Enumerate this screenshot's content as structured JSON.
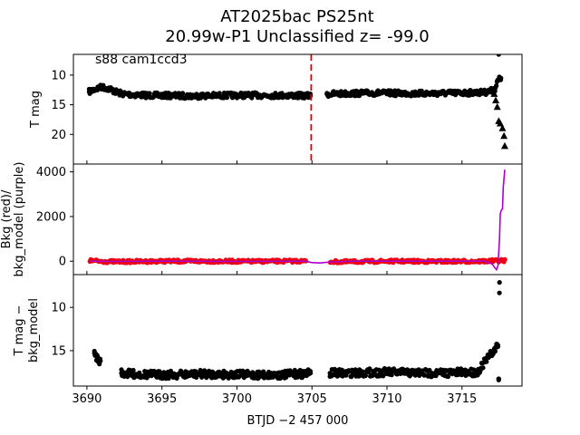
{
  "title_line1": "AT2025bac  PS25nt",
  "title_line2": "20.99w-P1 Unclassified z= -99.0",
  "chart_data": [
    {
      "type": "scatter",
      "panel": "top",
      "ylabel": "T mag",
      "annotation": "s88 cam1ccd3",
      "y_inverted": true,
      "yticks": [
        10,
        15,
        20
      ],
      "ylim": [
        25,
        6.5
      ],
      "xlim": [
        3689.1,
        3719.0
      ],
      "vline": {
        "x": 3704.95,
        "color": "#dd0000",
        "style": "dashed"
      },
      "series": [
        {
          "marker": "circle",
          "color": "#000000",
          "x": [
            3690.15,
            3690.5,
            3691.0,
            3691.5,
            3692.0,
            3692.5,
            3694.0,
            3697.0,
            3700.0,
            3703.0,
            3704.9,
            3706.0,
            3709.0,
            3712.0,
            3715.0,
            3716.5,
            3716.9,
            3717.2,
            3717.4,
            3717.6,
            3717.45
          ],
          "y": [
            12.8,
            12.4,
            12.0,
            12.3,
            12.9,
            13.2,
            13.4,
            13.5,
            13.4,
            13.4,
            13.5,
            13.2,
            13.0,
            13.1,
            13.0,
            12.9,
            12.7,
            12.3,
            10.9,
            10.5,
            6.5
          ]
        },
        {
          "marker": "triangle",
          "color": "#000000",
          "x": [
            3717.15,
            3717.25,
            3717.35,
            3717.45,
            3717.55,
            3717.7,
            3717.8,
            3717.85
          ],
          "y": [
            13.2,
            14.3,
            15.4,
            17.8,
            18.2,
            19.0,
            20.3,
            22.0
          ]
        }
      ]
    },
    {
      "type": "line",
      "panel": "middle",
      "ylabel_line1": "Bkg (red)/",
      "ylabel_line2": "bkg_model (purple)",
      "yticks": [
        0,
        2000,
        4000
      ],
      "ylim": [
        -600,
        4350
      ],
      "xlim": [
        3689.1,
        3719.0
      ],
      "series": [
        {
          "name": "Bkg",
          "color": "#ee0011",
          "style": "dots",
          "x": [
            3690.2,
            3691.0,
            3692.0,
            3695.0,
            3698.0,
            3701.0,
            3704.0,
            3704.5,
            3706.3,
            3707.0,
            3710.0,
            3713.0,
            3715.5,
            3716.5,
            3717.3,
            3717.9
          ],
          "y": [
            30,
            -10,
            -20,
            0,
            0,
            -10,
            5,
            0,
            -20,
            -30,
            0,
            -10,
            -5,
            0,
            20,
            30
          ]
        },
        {
          "name": "bkg_model",
          "color": "#aa00cc",
          "style": "line",
          "x": [
            3690.2,
            3692.0,
            3695.0,
            3700.0,
            3704.5,
            3705.0,
            3705.5,
            3706.3,
            3708.0,
            3712.0,
            3716.5,
            3717.0,
            3717.2,
            3717.3,
            3717.4,
            3717.5,
            3717.55,
            3717.6,
            3717.7,
            3717.75,
            3717.85
          ],
          "y": [
            0,
            -10,
            0,
            -10,
            0,
            -60,
            -80,
            -30,
            0,
            0,
            0,
            -120,
            -300,
            -380,
            -200,
            1000,
            2100,
            2250,
            2350,
            3300,
            4100
          ]
        }
      ]
    },
    {
      "type": "scatter",
      "panel": "bottom",
      "ylabel_line1": "T mag −",
      "ylabel_line2": "bkg_model",
      "y_inverted": true,
      "yticks": [
        10,
        15
      ],
      "xlabel": "BTJD −2 457 000",
      "xticks": [
        3690,
        3695,
        3700,
        3705,
        3710,
        3715
      ],
      "ylim": [
        19.1,
        6.2
      ],
      "xlim": [
        3689.1,
        3719.0
      ],
      "series": [
        {
          "marker": "circle",
          "color": "#000000",
          "x": [
            3690.5,
            3690.7,
            3690.9,
            3692.3,
            3693.0,
            3695.0,
            3698.0,
            3701.0,
            3703.0,
            3704.9,
            3706.2,
            3707.0,
            3710.0,
            3713.0,
            3716.0,
            3717.3,
            3717.4,
            3717.45,
            3717.5
          ],
          "y": [
            15.3,
            15.9,
            16.2,
            17.6,
            17.7,
            17.8,
            17.7,
            17.8,
            17.8,
            17.6,
            17.6,
            17.6,
            17.5,
            17.6,
            17.5,
            14.6,
            14.4,
            18.4,
            7.1
          ]
        }
      ]
    }
  ]
}
